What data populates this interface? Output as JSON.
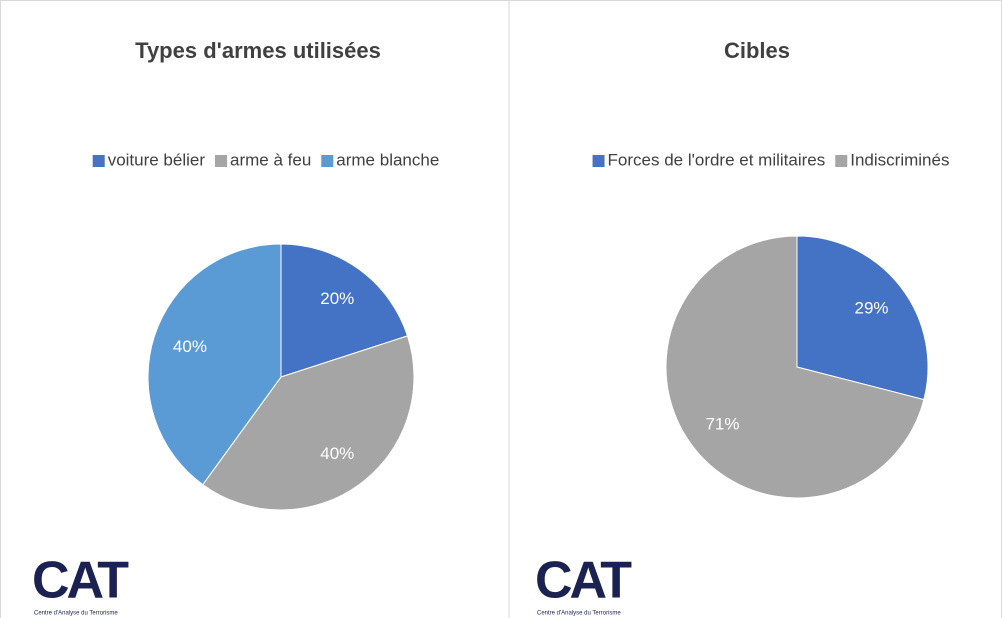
{
  "chart_data": [
    {
      "type": "pie",
      "title": "Types d'armes utilisées",
      "categories": [
        "voiture bélier",
        "arme à feu",
        "arme blanche"
      ],
      "values": [
        20,
        40,
        40
      ],
      "value_labels": [
        "20%",
        "40%",
        "40%"
      ],
      "colors": [
        "#4472c4",
        "#a5a5a5",
        "#5b9bd5"
      ],
      "legend": "top"
    },
    {
      "type": "pie",
      "title": "Cibles",
      "categories": [
        "Forces de l'ordre et militaires",
        "Indiscriminés"
      ],
      "values": [
        29,
        71
      ],
      "value_labels": [
        "29%",
        "71%"
      ],
      "colors": [
        "#4472c4",
        "#a5a5a5"
      ],
      "legend": "top"
    }
  ],
  "logo": {
    "text": "CAT",
    "subtitle": "Centre d'Analyse du Terrorisme"
  }
}
